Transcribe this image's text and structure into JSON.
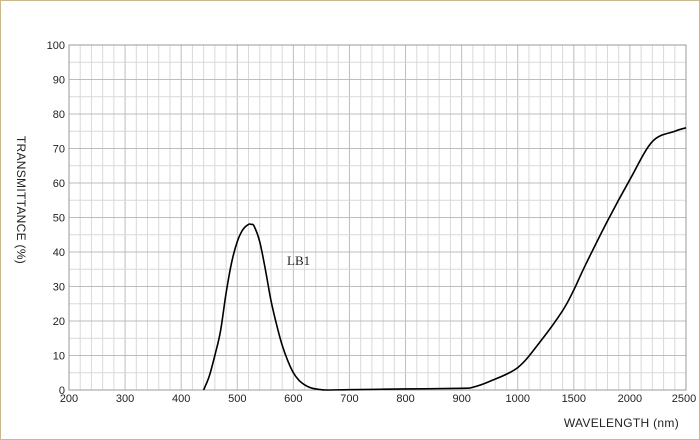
{
  "chart_data": {
    "type": "line",
    "xlabel": "WAVELENGTH (nm)",
    "ylabel": "TRANSMITTANCE   (%)",
    "x_ticks": [
      "200",
      "300",
      "400",
      "500",
      "600",
      "700",
      "800",
      "900",
      "1000",
      "1500",
      "2000",
      "2500"
    ],
    "y_ticks": [
      "0",
      "10",
      "20",
      "30",
      "40",
      "50",
      "60",
      "70",
      "80",
      "90",
      "100"
    ],
    "ylim": [
      0,
      100
    ],
    "grid": true,
    "series": [
      {
        "name": "LB1",
        "x": [
          440,
          450,
          460,
          470,
          480,
          490,
          500,
          510,
          520,
          525,
          530,
          540,
          550,
          560,
          570,
          580,
          590,
          600,
          610,
          620,
          630,
          640,
          650,
          660,
          700,
          800,
          900,
          920,
          950,
          1000,
          1200,
          1400,
          1500,
          1600,
          1800,
          2000,
          2200,
          2400,
          2500
        ],
        "y": [
          0,
          4,
          10,
          17,
          28,
          37,
          43,
          46.5,
          48,
          48,
          47.5,
          43,
          35,
          26,
          19,
          13,
          8.5,
          5,
          2.8,
          1.5,
          0.7,
          0.3,
          0.1,
          0,
          0.1,
          0.3,
          0.5,
          0.8,
          2.5,
          6.5,
          14,
          23,
          29,
          36,
          49,
          61,
          72,
          75,
          76
        ]
      }
    ]
  }
}
